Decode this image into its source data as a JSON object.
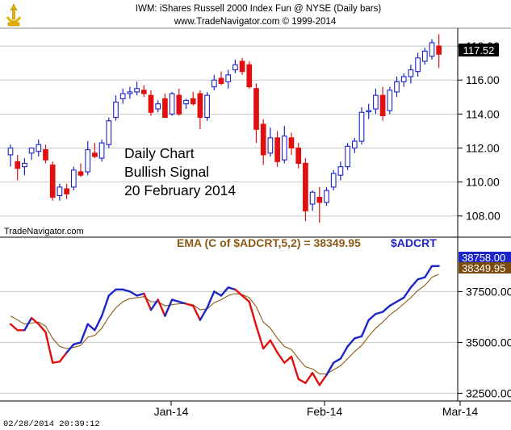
{
  "header": {
    "title": "IWM:  iShares Russell 2000 Index Fun @ NYSE  (Daily bars)",
    "copyright": "www.TradeNavigator.com © 1999-2014"
  },
  "price_panel": {
    "annotation_lines": [
      "Daily Chart",
      "Bullish Signal",
      "20 February 2014"
    ],
    "watermark": "TradeNavigator.com",
    "last_price_label": "117.52"
  },
  "indicator_panel": {
    "formula_label": "EMA (C of $ADCRT,5,2) = 38349.95",
    "symbol_label": "$ADCRT",
    "value_label_1": "38758.00",
    "value_label_2": "38349.95"
  },
  "footer": {
    "timestamp": "02/28/2014  20:39:12"
  },
  "colors": {
    "up": "#1d24c8",
    "down": "#e01010",
    "ema": "#8b5a14",
    "formula_text": "#8b5a14",
    "symbol_text": "#1d24c8",
    "gridline": "#c8c8c8"
  },
  "chart_data": [
    {
      "type": "candlestick",
      "title": "IWM:  iShares Russell 2000 Index Fun @ NYSE  (Daily bars)",
      "ylim": [
        106.8,
        119
      ],
      "y_ticks": [
        108,
        110,
        112,
        114,
        116,
        118
      ],
      "x_ticks": [
        "Jan-14",
        "Feb-14",
        "Mar-14"
      ],
      "grid": true,
      "last_value": 117.52,
      "candles": [
        {
          "o": 111.6,
          "h": 112.2,
          "l": 110.9,
          "c": 112.0
        },
        {
          "o": 111.2,
          "h": 111.6,
          "l": 110.1,
          "c": 110.8
        },
        {
          "o": 110.9,
          "h": 111.4,
          "l": 110.4,
          "c": 111.1
        },
        {
          "o": 111.7,
          "h": 112.0,
          "l": 111.3,
          "c": 112.0
        },
        {
          "o": 111.8,
          "h": 112.5,
          "l": 111.5,
          "c": 112.2
        },
        {
          "o": 111.9,
          "h": 112.2,
          "l": 111.1,
          "c": 111.3
        },
        {
          "o": 111.0,
          "h": 111.2,
          "l": 108.9,
          "c": 109.1
        },
        {
          "o": 109.2,
          "h": 109.9,
          "l": 108.9,
          "c": 109.7
        },
        {
          "o": 109.6,
          "h": 109.9,
          "l": 109.0,
          "c": 109.3
        },
        {
          "o": 109.7,
          "h": 110.9,
          "l": 109.5,
          "c": 110.7
        },
        {
          "o": 110.6,
          "h": 111.1,
          "l": 110.3,
          "c": 110.4
        },
        {
          "o": 110.6,
          "h": 112.4,
          "l": 110.4,
          "c": 111.9
        },
        {
          "o": 111.7,
          "h": 112.3,
          "l": 111.4,
          "c": 111.5
        },
        {
          "o": 111.4,
          "h": 112.5,
          "l": 111.2,
          "c": 112.3
        },
        {
          "o": 112.2,
          "h": 113.8,
          "l": 112.0,
          "c": 113.6
        },
        {
          "o": 113.8,
          "h": 115.1,
          "l": 113.6,
          "c": 114.7
        },
        {
          "o": 114.9,
          "h": 115.5,
          "l": 114.6,
          "c": 115.2
        },
        {
          "o": 115.2,
          "h": 115.6,
          "l": 114.9,
          "c": 115.3
        },
        {
          "o": 115.3,
          "h": 115.9,
          "l": 115.1,
          "c": 115.5
        },
        {
          "o": 115.4,
          "h": 115.7,
          "l": 115.0,
          "c": 115.2
        },
        {
          "o": 115.1,
          "h": 115.4,
          "l": 113.9,
          "c": 114.1
        },
        {
          "o": 114.3,
          "h": 114.8,
          "l": 114.1,
          "c": 114.6
        },
        {
          "o": 114.9,
          "h": 115.2,
          "l": 113.8,
          "c": 113.8
        },
        {
          "o": 114.0,
          "h": 115.3,
          "l": 113.9,
          "c": 115.2
        },
        {
          "o": 115.1,
          "h": 115.5,
          "l": 113.9,
          "c": 114.0
        },
        {
          "o": 114.6,
          "h": 114.9,
          "l": 114.3,
          "c": 114.8
        },
        {
          "o": 114.9,
          "h": 115.3,
          "l": 114.5,
          "c": 114.6
        },
        {
          "o": 115.2,
          "h": 115.4,
          "l": 113.1,
          "c": 113.8
        },
        {
          "o": 113.8,
          "h": 115.3,
          "l": 113.6,
          "c": 115.1
        },
        {
          "o": 115.6,
          "h": 116.3,
          "l": 115.4,
          "c": 116.0
        },
        {
          "o": 116.1,
          "h": 116.5,
          "l": 115.7,
          "c": 115.8
        },
        {
          "o": 115.9,
          "h": 116.6,
          "l": 115.5,
          "c": 116.3
        },
        {
          "o": 116.6,
          "h": 117.2,
          "l": 116.4,
          "c": 116.9
        },
        {
          "o": 117.1,
          "h": 117.3,
          "l": 116.3,
          "c": 116.5
        },
        {
          "o": 116.9,
          "h": 117.1,
          "l": 115.5,
          "c": 115.6
        },
        {
          "o": 115.5,
          "h": 115.8,
          "l": 112.3,
          "c": 113.1
        },
        {
          "o": 113.4,
          "h": 113.7,
          "l": 111.0,
          "c": 111.6
        },
        {
          "o": 111.7,
          "h": 113.2,
          "l": 111.5,
          "c": 112.6
        },
        {
          "o": 112.6,
          "h": 113.0,
          "l": 110.9,
          "c": 111.2
        },
        {
          "o": 111.3,
          "h": 113.3,
          "l": 111.1,
          "c": 112.7
        },
        {
          "o": 112.6,
          "h": 112.9,
          "l": 111.6,
          "c": 112.0
        },
        {
          "o": 112.0,
          "h": 112.3,
          "l": 110.8,
          "c": 111.1
        },
        {
          "o": 111.1,
          "h": 111.4,
          "l": 107.7,
          "c": 108.3
        },
        {
          "o": 108.7,
          "h": 109.5,
          "l": 108.3,
          "c": 109.4
        },
        {
          "o": 109.1,
          "h": 109.7,
          "l": 107.6,
          "c": 108.8
        },
        {
          "o": 108.8,
          "h": 109.7,
          "l": 108.6,
          "c": 109.5
        },
        {
          "o": 109.7,
          "h": 110.7,
          "l": 109.5,
          "c": 110.5
        },
        {
          "o": 110.4,
          "h": 111.2,
          "l": 110.1,
          "c": 110.9
        },
        {
          "o": 110.9,
          "h": 112.3,
          "l": 110.7,
          "c": 112.1
        },
        {
          "o": 112.0,
          "h": 112.6,
          "l": 111.7,
          "c": 112.4
        },
        {
          "o": 112.4,
          "h": 114.4,
          "l": 112.2,
          "c": 114.1
        },
        {
          "o": 114.2,
          "h": 114.6,
          "l": 113.7,
          "c": 114.2
        },
        {
          "o": 114.3,
          "h": 115.5,
          "l": 114.0,
          "c": 115.1
        },
        {
          "o": 115.1,
          "h": 115.6,
          "l": 113.6,
          "c": 113.9
        },
        {
          "o": 114.2,
          "h": 115.6,
          "l": 114.0,
          "c": 115.4
        },
        {
          "o": 115.3,
          "h": 116.2,
          "l": 115.0,
          "c": 115.9
        },
        {
          "o": 115.9,
          "h": 116.4,
          "l": 115.6,
          "c": 116.2
        },
        {
          "o": 116.2,
          "h": 116.9,
          "l": 115.8,
          "c": 116.6
        },
        {
          "o": 116.5,
          "h": 117.6,
          "l": 116.2,
          "c": 117.3
        },
        {
          "o": 117.1,
          "h": 117.9,
          "l": 116.9,
          "c": 117.7
        },
        {
          "o": 117.4,
          "h": 118.4,
          "l": 117.2,
          "c": 118.2
        },
        {
          "o": 118.0,
          "h": 118.7,
          "l": 116.7,
          "c": 117.52
        }
      ]
    },
    {
      "type": "line",
      "ylim": [
        32200,
        39300
      ],
      "y_ticks": [
        32500,
        35000,
        37500
      ],
      "x_ticks": [
        "Jan-14",
        "Feb-14",
        "Mar-14"
      ],
      "grid": true,
      "series": [
        {
          "name": "$ADCRT",
          "color_mode": "blue when above EMA, red when below",
          "values": [
            35900,
            35600,
            35600,
            36200,
            35900,
            35500,
            34000,
            34050,
            34500,
            34900,
            35000,
            35900,
            35600,
            36300,
            37300,
            37600,
            37600,
            37500,
            37300,
            37400,
            36600,
            37100,
            36300,
            37100,
            37000,
            36900,
            36800,
            36100,
            36700,
            37500,
            37300,
            37700,
            37600,
            37300,
            37000,
            35800,
            34700,
            35100,
            34500,
            34000,
            34300,
            33200,
            33000,
            33500,
            32900,
            33400,
            34000,
            34200,
            34800,
            35200,
            35300,
            36100,
            36400,
            36500,
            36800,
            37000,
            37200,
            37700,
            38100,
            38200,
            38750,
            38758
          ]
        },
        {
          "name": "EMA (C of $ADCRT,5,2)",
          "color": "#8b5a14",
          "values": [
            36300,
            36100,
            35900,
            35950,
            36000,
            35800,
            35200,
            34800,
            34700,
            34750,
            34850,
            35250,
            35350,
            35700,
            36250,
            36700,
            37000,
            37150,
            37200,
            37250,
            37000,
            37000,
            36800,
            36850,
            36900,
            36900,
            36850,
            36600,
            36650,
            36950,
            37100,
            37300,
            37400,
            37350,
            37200,
            36750,
            36000,
            35700,
            35200,
            34800,
            34650,
            34200,
            33800,
            33700,
            33450,
            33450,
            33650,
            33850,
            34200,
            34550,
            34850,
            35300,
            35700,
            36000,
            36350,
            36600,
            36900,
            37200,
            37550,
            37800,
            38200,
            38349.95
          ]
        }
      ]
    }
  ]
}
